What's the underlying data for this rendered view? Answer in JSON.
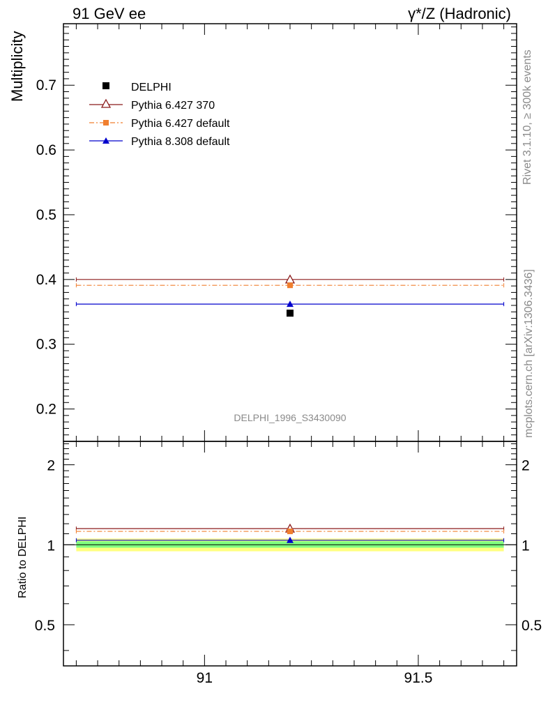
{
  "chart_data": [
    {
      "type": "scatter",
      "panel": "main",
      "title_left": "91 GeV ee",
      "title_right": "γ*/Z (Hadronic)",
      "ylabel": "Multiplicity",
      "xlim": [
        90.67,
        91.73
      ],
      "ylim": [
        0.15,
        0.795
      ],
      "yticks": [
        0.2,
        0.3,
        0.4,
        0.5,
        0.6,
        0.7
      ],
      "ytick_labels": [
        "0.2",
        "0.3",
        "0.4",
        "0.5",
        "0.6",
        "0.7"
      ],
      "xticks": [
        91,
        91.5
      ],
      "watermark": "DELPHI_1996_S3430090",
      "bin": [
        90.7,
        91.7
      ],
      "x_center": 91.2,
      "series": [
        {
          "name": "DELPHI",
          "key": "delphi",
          "value": 0.348,
          "color": "#000000",
          "marker": "square",
          "line": "none"
        },
        {
          "name": "Pythia 6.427 370",
          "key": "p6_370",
          "value": 0.4,
          "color": "#8b1a1a",
          "marker": "open-triangle",
          "line": "solid"
        },
        {
          "name": "Pythia 6.427 default",
          "key": "p6_def",
          "value": 0.391,
          "color": "#f07f2f",
          "marker": "square-small",
          "line": "dashdot"
        },
        {
          "name": "Pythia 8.308 default",
          "key": "p8_def",
          "value": 0.362,
          "color": "#0000cc",
          "marker": "filled-triangle",
          "line": "solid"
        }
      ]
    },
    {
      "type": "scatter",
      "panel": "ratio",
      "ylabel": "Ratio to DELPHI",
      "xlim": [
        90.67,
        91.73
      ],
      "ylim": [
        0.35,
        2.45
      ],
      "yscale": "log",
      "yticks": [
        0.5,
        1,
        2
      ],
      "ytick_labels": [
        "0.5",
        "1",
        "2"
      ],
      "xticks": [
        91,
        91.5
      ],
      "xtick_labels": [
        "91",
        "91.5"
      ],
      "bands": [
        {
          "low": 0.945,
          "high": 1.055,
          "color": "#ffff80"
        },
        {
          "low": 0.975,
          "high": 1.03,
          "color": "#80ff80"
        }
      ],
      "series": [
        {
          "key": "p6_370",
          "value": 1.15,
          "color": "#8b1a1a"
        },
        {
          "key": "p6_def",
          "value": 1.123,
          "color": "#f07f2f"
        },
        {
          "key": "p8_def",
          "value": 1.04,
          "color": "#0000cc"
        }
      ]
    }
  ],
  "side_text": {
    "rivet": "Rivet 3.1.10, ≥ 300k events",
    "mcplots": "mcplots.cern.ch [arXiv:1306.3436]"
  }
}
